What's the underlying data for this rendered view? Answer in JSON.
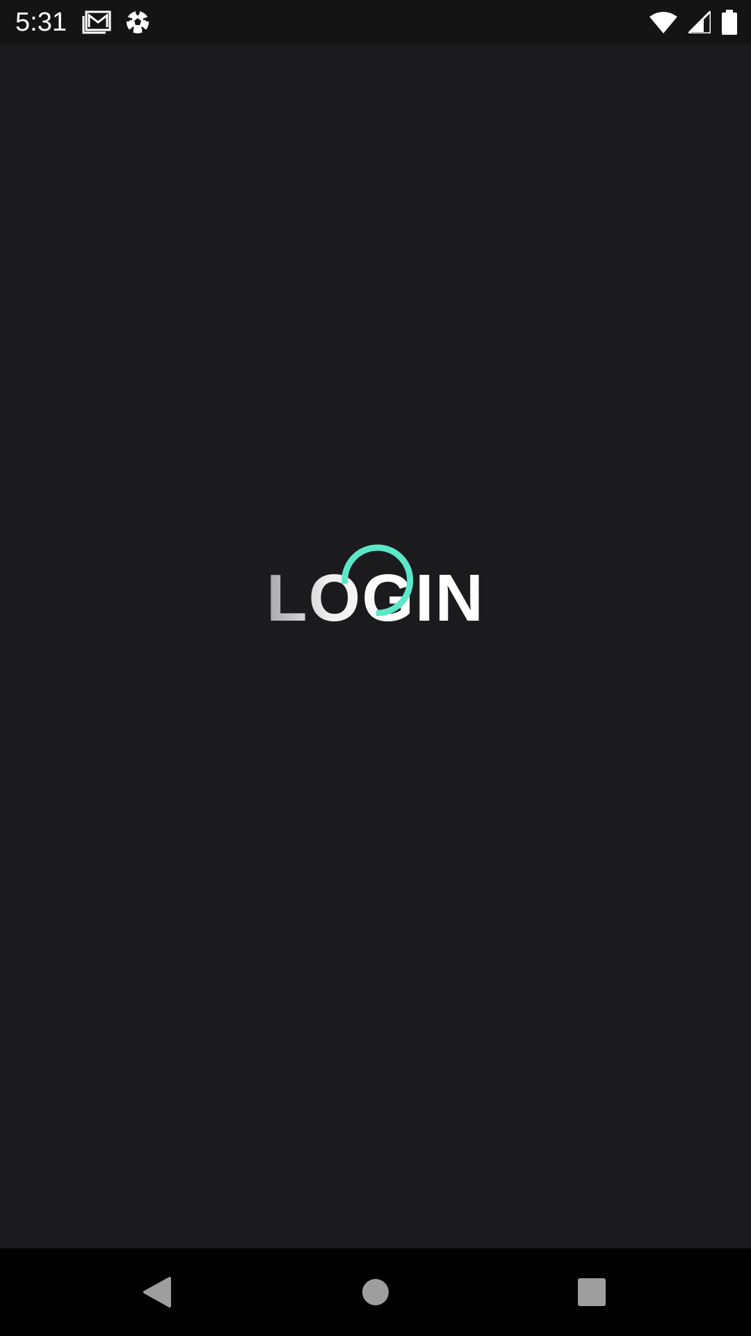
{
  "status_bar": {
    "time": "5:31",
    "left_icons": [
      "gmail-icon",
      "soccer-ball-icon"
    ],
    "right_icons": [
      "wifi-icon",
      "cell-signal-icon",
      "battery-icon"
    ]
  },
  "main": {
    "loading_label": "LOGIN",
    "spinner_color": "#5ce8c8"
  },
  "nav_bar": {
    "buttons": [
      "back-icon",
      "home-icon",
      "recents-icon"
    ]
  },
  "colors": {
    "background": "#1b1b1d",
    "status_bar": "#141415",
    "nav_bar": "#000000",
    "accent": "#5ce8c8"
  }
}
